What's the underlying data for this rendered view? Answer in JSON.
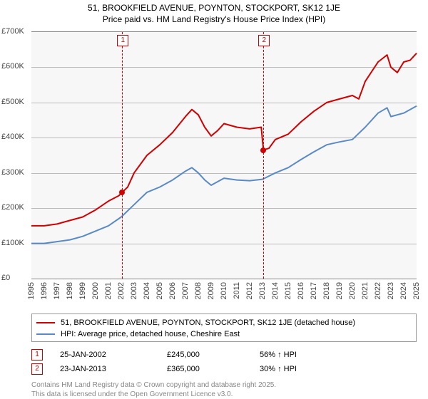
{
  "title": {
    "line1": "51, BROOKFIELD AVENUE, POYNTON, STOCKPORT, SK12 1JE",
    "line2": "Price paid vs. HM Land Registry's House Price Index (HPI)",
    "fontsize": 12,
    "color": "#000000"
  },
  "chart": {
    "type": "line",
    "background_color": "#f7f7f7",
    "grid_color": "#bbbbbb",
    "border_color": "#888888",
    "x": {
      "min": 1995,
      "max": 2025,
      "step": 1,
      "tick_labels": [
        "1995",
        "1996",
        "1997",
        "1998",
        "1999",
        "2000",
        "2001",
        "2002",
        "2003",
        "2004",
        "2005",
        "2006",
        "2007",
        "2008",
        "2009",
        "2010",
        "2011",
        "2012",
        "2013",
        "2014",
        "2015",
        "2016",
        "2017",
        "2018",
        "2019",
        "2020",
        "2021",
        "2022",
        "2023",
        "2024",
        "2025"
      ]
    },
    "y": {
      "min": 0,
      "max": 700000,
      "step": 100000,
      "tick_labels": [
        "£0",
        "£100K",
        "£200K",
        "£300K",
        "£400K",
        "£500K",
        "£600K",
        "£700K"
      ]
    },
    "series": [
      {
        "id": "property",
        "label": "51, BROOKFIELD AVENUE, POYNTON, STOCKPORT, SK12 1JE (detached house)",
        "color": "#d00000",
        "line_width": 2,
        "points": [
          [
            1995,
            150000
          ],
          [
            1996,
            150000
          ],
          [
            1997,
            155000
          ],
          [
            1998,
            165000
          ],
          [
            1999,
            175000
          ],
          [
            2000,
            195000
          ],
          [
            2001,
            220000
          ],
          [
            2001.8,
            235000
          ],
          [
            2002.07,
            245000
          ],
          [
            2002.5,
            260000
          ],
          [
            2003,
            300000
          ],
          [
            2004,
            350000
          ],
          [
            2005,
            380000
          ],
          [
            2006,
            415000
          ],
          [
            2007,
            460000
          ],
          [
            2007.5,
            480000
          ],
          [
            2008,
            465000
          ],
          [
            2008.5,
            430000
          ],
          [
            2009,
            405000
          ],
          [
            2009.5,
            420000
          ],
          [
            2010,
            440000
          ],
          [
            2011,
            430000
          ],
          [
            2012,
            425000
          ],
          [
            2012.9,
            430000
          ],
          [
            2013.07,
            365000
          ],
          [
            2013.5,
            370000
          ],
          [
            2014,
            395000
          ],
          [
            2015,
            410000
          ],
          [
            2016,
            445000
          ],
          [
            2017,
            475000
          ],
          [
            2018,
            500000
          ],
          [
            2019,
            510000
          ],
          [
            2020,
            520000
          ],
          [
            2020.5,
            510000
          ],
          [
            2021,
            560000
          ],
          [
            2022,
            615000
          ],
          [
            2022.7,
            635000
          ],
          [
            2023,
            600000
          ],
          [
            2023.5,
            585000
          ],
          [
            2024,
            615000
          ],
          [
            2024.5,
            620000
          ],
          [
            2025,
            640000
          ]
        ]
      },
      {
        "id": "hpi",
        "label": "HPI: Average price, detached house, Cheshire East",
        "color": "#5a8ac6",
        "line_width": 2,
        "points": [
          [
            1995,
            100000
          ],
          [
            1996,
            100000
          ],
          [
            1997,
            105000
          ],
          [
            1998,
            110000
          ],
          [
            1999,
            120000
          ],
          [
            2000,
            135000
          ],
          [
            2001,
            150000
          ],
          [
            2002,
            175000
          ],
          [
            2003,
            210000
          ],
          [
            2004,
            245000
          ],
          [
            2005,
            260000
          ],
          [
            2006,
            280000
          ],
          [
            2007,
            305000
          ],
          [
            2007.5,
            315000
          ],
          [
            2008,
            300000
          ],
          [
            2008.5,
            280000
          ],
          [
            2009,
            265000
          ],
          [
            2010,
            285000
          ],
          [
            2011,
            280000
          ],
          [
            2012,
            278000
          ],
          [
            2013,
            282000
          ],
          [
            2014,
            300000
          ],
          [
            2015,
            315000
          ],
          [
            2016,
            338000
          ],
          [
            2017,
            360000
          ],
          [
            2018,
            380000
          ],
          [
            2019,
            388000
          ],
          [
            2020,
            395000
          ],
          [
            2021,
            430000
          ],
          [
            2022,
            470000
          ],
          [
            2022.7,
            485000
          ],
          [
            2023,
            460000
          ],
          [
            2024,
            470000
          ],
          [
            2025,
            490000
          ]
        ]
      }
    ],
    "sales": [
      {
        "n": "1",
        "year": 2002.07,
        "price": 245000,
        "date": "25-JAN-2002",
        "price_label": "£245,000",
        "vs_hpi": "56% ↑ HPI"
      },
      {
        "n": "2",
        "year": 2013.07,
        "price": 365000,
        "date": "23-JAN-2013",
        "price_label": "£365,000",
        "vs_hpi": "30% ↑ HPI"
      }
    ]
  },
  "footer": {
    "line1": "Contains HM Land Registry data © Crown copyright and database right 2025.",
    "line2": "This data is licensed under the Open Government Licence v3.0."
  },
  "typography": {
    "axis_fontsize": 11,
    "legend_fontsize": 11,
    "footer_fontsize": 10
  }
}
